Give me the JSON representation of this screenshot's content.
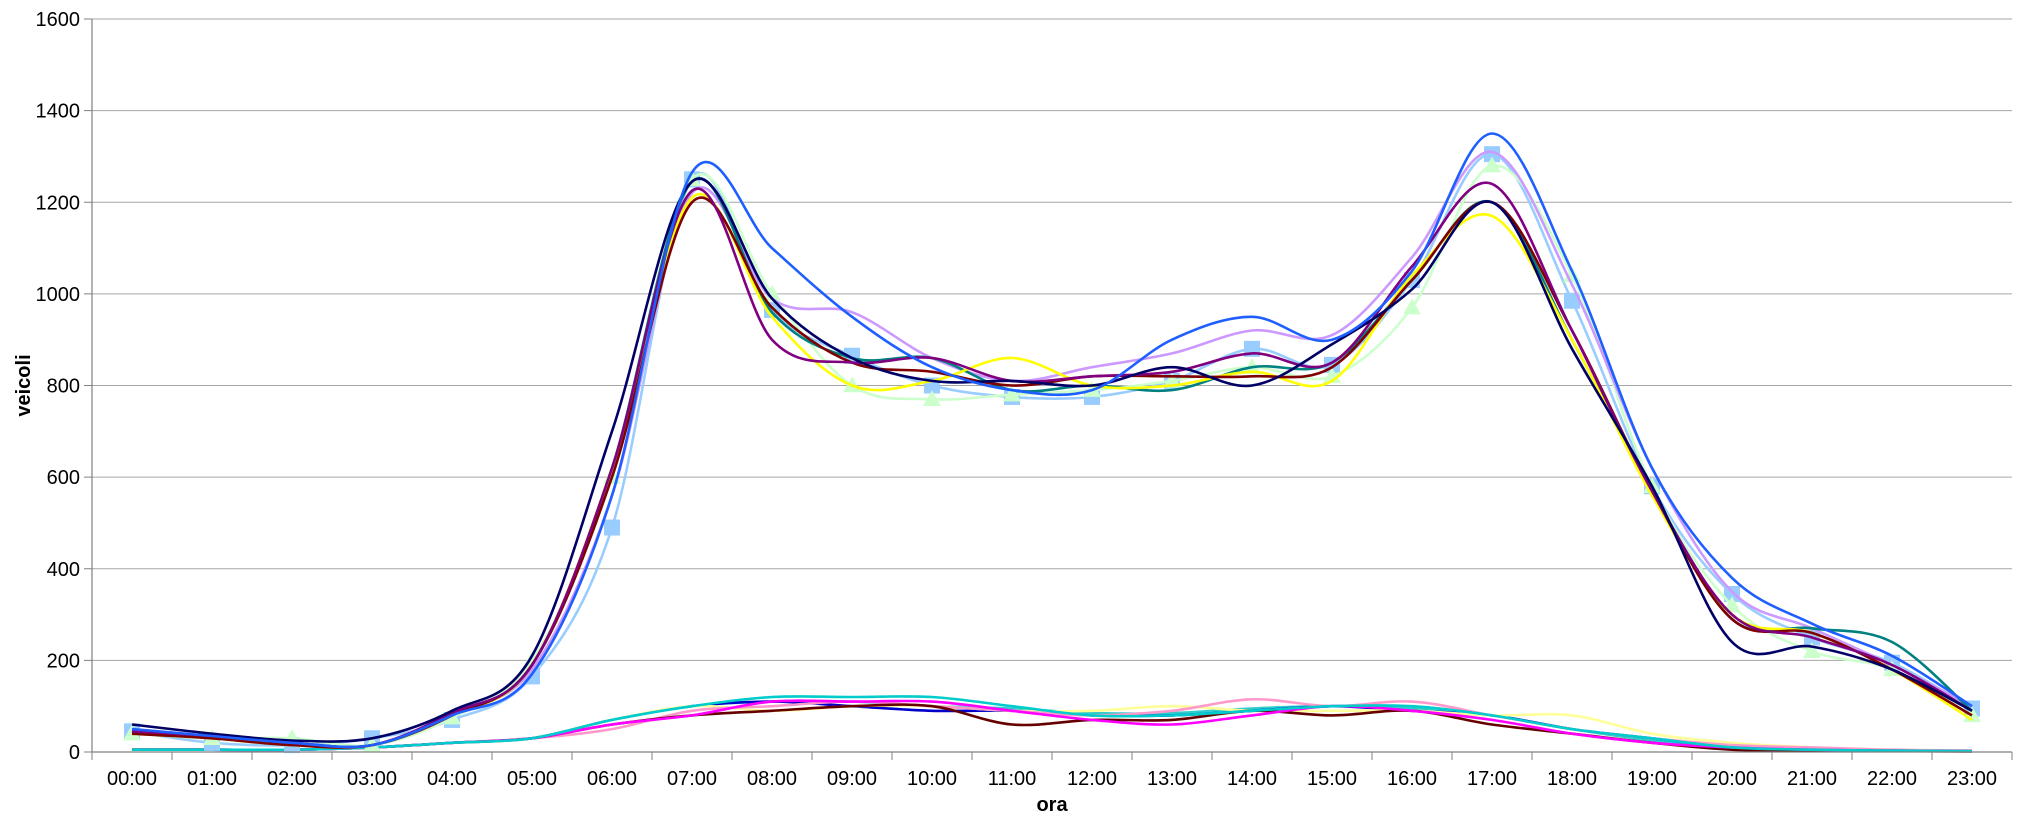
{
  "chart_data": {
    "type": "line",
    "title": "",
    "xlabel": "ora",
    "ylabel": "veicoli",
    "ylim": [
      0,
      1600
    ],
    "yticks": [
      0,
      200,
      400,
      600,
      800,
      1000,
      1200,
      1400,
      1600
    ],
    "grid": true,
    "legend": "none",
    "categories": [
      "00:00",
      "01:00",
      "02:00",
      "03:00",
      "04:00",
      "05:00",
      "06:00",
      "07:00",
      "08:00",
      "09:00",
      "10:00",
      "11:00",
      "12:00",
      "13:00",
      "14:00",
      "15:00",
      "16:00",
      "17:00",
      "18:00",
      "19:00",
      "20:00",
      "21:00",
      "22:00",
      "23:00"
    ],
    "series": [
      {
        "color": "#1F5FFF",
        "marker": "none",
        "values": [
          50,
          35,
          20,
          15,
          80,
          170,
          560,
          1265,
          1100,
          950,
          840,
          790,
          790,
          900,
          950,
          900,
          1050,
          1350,
          1050,
          620,
          380,
          280,
          210,
          100
        ]
      },
      {
        "color": "#000066",
        "marker": "none",
        "values": [
          60,
          40,
          25,
          30,
          90,
          210,
          700,
          1245,
          990,
          860,
          810,
          810,
          800,
          840,
          800,
          890,
          1010,
          1200,
          880,
          580,
          240,
          230,
          180,
          90
        ]
      },
      {
        "color": "#800080",
        "marker": "none",
        "values": [
          45,
          35,
          20,
          15,
          85,
          190,
          620,
          1225,
          900,
          850,
          860,
          810,
          820,
          830,
          870,
          850,
          1060,
          1240,
          920,
          570,
          300,
          250,
          190,
          90
        ]
      },
      {
        "color": "#7F0000",
        "marker": "none",
        "values": [
          40,
          30,
          15,
          15,
          80,
          190,
          600,
          1200,
          970,
          850,
          830,
          800,
          820,
          820,
          820,
          840,
          1030,
          1200,
          920,
          570,
          290,
          260,
          180,
          80
        ]
      },
      {
        "color": "#FFFF00",
        "marker": "none",
        "values": [
          40,
          30,
          15,
          15,
          80,
          190,
          620,
          1210,
          950,
          800,
          810,
          860,
          800,
          800,
          830,
          810,
          1040,
          1170,
          900,
          560,
          300,
          260,
          180,
          70
        ]
      },
      {
        "color": "#008080",
        "marker": "none",
        "values": [
          45,
          35,
          20,
          15,
          80,
          190,
          620,
          1245,
          960,
          860,
          860,
          790,
          800,
          790,
          840,
          850,
          1030,
          1200,
          900,
          570,
          290,
          270,
          240,
          90
        ]
      },
      {
        "color": "#CC99FF",
        "marker": "none",
        "values": [
          45,
          30,
          20,
          15,
          85,
          180,
          560,
          1220,
          990,
          960,
          860,
          810,
          840,
          870,
          920,
          910,
          1080,
          1310,
          1020,
          620,
          350,
          270,
          190,
          100
        ]
      },
      {
        "color": "#CCFFCC",
        "marker": "triangle",
        "values": [
          40,
          30,
          30,
          15,
          75,
          200,
          600,
          1250,
          1000,
          800,
          770,
          780,
          790,
          810,
          840,
          820,
          970,
          1280,
          1040,
          580,
          320,
          220,
          180,
          80
        ]
      },
      {
        "color": "#99CCFF",
        "marker": "square",
        "values": [
          45,
          20,
          15,
          30,
          70,
          165,
          490,
          1250,
          965,
          865,
          800,
          775,
          775,
          810,
          880,
          845,
          1030,
          1305,
          985,
          580,
          345,
          250,
          195,
          95
        ]
      },
      {
        "color": "#00CCCC",
        "marker": "none",
        "values": [
          5,
          5,
          5,
          10,
          20,
          30,
          70,
          100,
          120,
          120,
          120,
          100,
          80,
          80,
          90,
          100,
          100,
          80,
          50,
          30,
          10,
          5,
          3,
          2
        ]
      },
      {
        "color": "#FF00FF",
        "marker": "none",
        "values": [
          5,
          5,
          5,
          10,
          20,
          30,
          60,
          80,
          110,
          110,
          110,
          90,
          70,
          60,
          80,
          100,
          90,
          70,
          40,
          20,
          10,
          5,
          3,
          2
        ]
      },
      {
        "color": "#660000",
        "marker": "none",
        "values": [
          5,
          5,
          5,
          10,
          20,
          30,
          60,
          80,
          90,
          100,
          100,
          60,
          70,
          70,
          90,
          80,
          90,
          60,
          40,
          20,
          5,
          3,
          2,
          1
        ]
      },
      {
        "color": "#FF99CC",
        "marker": "none",
        "values": [
          5,
          5,
          5,
          10,
          20,
          30,
          50,
          90,
          100,
          110,
          100,
          90,
          80,
          90,
          115,
          100,
          110,
          80,
          50,
          30,
          15,
          10,
          5,
          3
        ]
      },
      {
        "color": "#FFFF99",
        "marker": "none",
        "values": [
          5,
          5,
          5,
          10,
          20,
          30,
          70,
          100,
          90,
          100,
          100,
          90,
          90,
          100,
          90,
          90,
          90,
          80,
          80,
          40,
          20,
          10,
          5,
          3
        ]
      },
      {
        "color": "#0000CC",
        "marker": "none",
        "values": [
          5,
          5,
          5,
          10,
          20,
          30,
          70,
          100,
          110,
          100,
          90,
          90,
          80,
          80,
          90,
          100,
          90,
          80,
          50,
          30,
          10,
          5,
          3,
          2
        ]
      },
      {
        "color": "#33CCCC",
        "marker": "none",
        "values": [
          5,
          5,
          5,
          10,
          20,
          30,
          70,
          100,
          110,
          110,
          100,
          95,
          85,
          85,
          95,
          100,
          95,
          80,
          50,
          25,
          10,
          5,
          3,
          2
        ]
      }
    ]
  }
}
